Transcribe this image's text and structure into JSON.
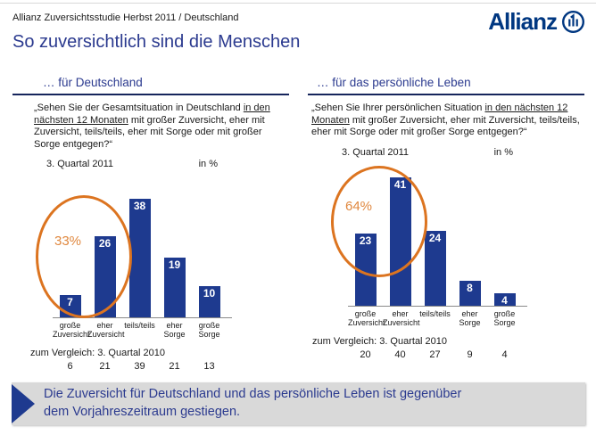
{
  "header": {
    "subtitle": "Allianz Zuversichtsstudie Herbst 2011 / Deutschland",
    "title": "So zuversichtlich sind die Menschen",
    "logo_text": "Allianz"
  },
  "colors": {
    "allianz_blue": "#003781",
    "title_blue": "#2b3a8f",
    "bar_blue": "#1e3a8f",
    "heading_rule": "#16255c",
    "highlight_orange": "#dc7420",
    "highlight_text_orange": "#e0883f",
    "banner_bg": "#d9d9d9",
    "axis_gray": "#8a8a8a"
  },
  "chart_data": [
    {
      "type": "bar",
      "heading": "… für Deutschland",
      "question_before": "„Sehen Sie der Gesamtsituation in Deutschland ",
      "question_underlined": "in den nächsten 12 Monaten",
      "question_after": " mit großer Zuversicht, eher mit Zuversicht, teils/teils, eher mit Sorge oder mit großer Sorge entgegen?“",
      "period": "3. Quartal 2011",
      "unit": "in %",
      "categories": [
        "große Zuversicht",
        "eher Zuversicht",
        "teils/teils",
        "eher Sorge",
        "große Sorge"
      ],
      "category_lines": [
        [
          "große",
          "Zuversicht"
        ],
        [
          "eher",
          "Zuversicht"
        ],
        [
          "teils/teils"
        ],
        [
          "eher Sorge"
        ],
        [
          "große",
          "Sorge"
        ]
      ],
      "values": [
        7,
        26,
        38,
        19,
        10
      ],
      "ylim": [
        0,
        45
      ],
      "highlight": {
        "label": "33%",
        "covers": [
          "große Zuversicht",
          "eher Zuversicht"
        ]
      },
      "comparison_label": "zum Vergleich: 3. Quartal 2010",
      "comparison_values": [
        6,
        21,
        39,
        21,
        13
      ]
    },
    {
      "type": "bar",
      "heading": "… für das persönliche Leben",
      "question_before": "„Sehen Sie Ihrer persönlichen Situation ",
      "question_underlined": "in den nächsten 12 Monaten",
      "question_after": " mit großer Zuversicht, eher mit Zuversicht, teils/teils, eher mit Sorge oder mit großer Sorge entgegen?“",
      "period": "3. Quartal 2011",
      "unit": "in %",
      "categories": [
        "große Zuversicht",
        "eher Zuversicht",
        "teils/teils",
        "eher Sorge",
        "große Sorge"
      ],
      "category_lines": [
        [
          "große",
          "Zuversicht"
        ],
        [
          "eher",
          "Zuversicht"
        ],
        [
          "teils/teils"
        ],
        [
          "eher Sorge"
        ],
        [
          "große",
          "Sorge"
        ]
      ],
      "values": [
        23,
        41,
        24,
        8,
        4
      ],
      "ylim": [
        0,
        45
      ],
      "highlight": {
        "label": "64%",
        "covers": [
          "große Zuversicht",
          "eher Zuversicht"
        ]
      },
      "comparison_label": "zum Vergleich: 3. Quartal 2010",
      "comparison_values": [
        20,
        40,
        27,
        9,
        4
      ]
    }
  ],
  "banner": {
    "line1": "Die Zuversicht für Deutschland und das persönliche Leben ist gegenüber",
    "line2": "dem Vorjahreszeitraum gestiegen."
  }
}
